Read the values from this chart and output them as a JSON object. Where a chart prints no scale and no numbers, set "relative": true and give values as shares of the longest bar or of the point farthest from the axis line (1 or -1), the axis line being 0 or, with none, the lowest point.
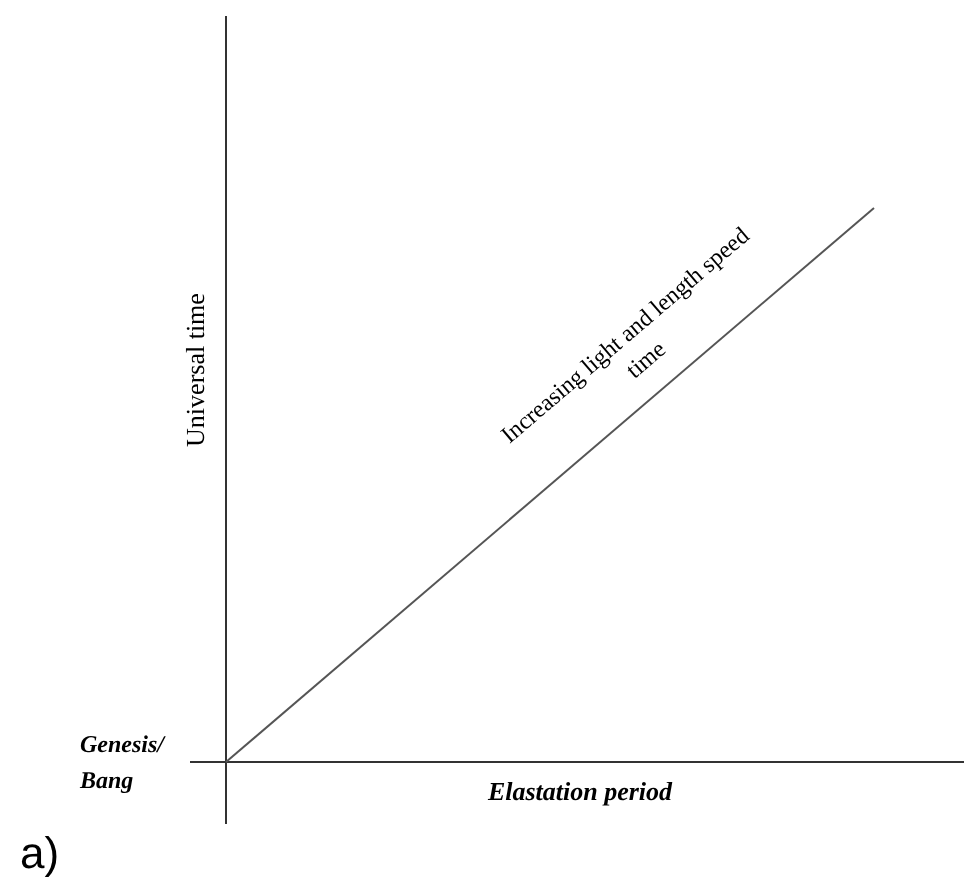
{
  "chart_data": {
    "type": "line",
    "relative": true,
    "xlabel": "Elastation period",
    "ylabel": "Universal time",
    "categories": [
      null,
      null
    ],
    "series": [
      {
        "color": "#555555",
        "values": [
          0,
          1
        ]
      }
    ],
    "annotations": [
      "Increasing light and length speed\ntime",
      "Genesis/\nBang",
      "a)"
    ]
  }
}
